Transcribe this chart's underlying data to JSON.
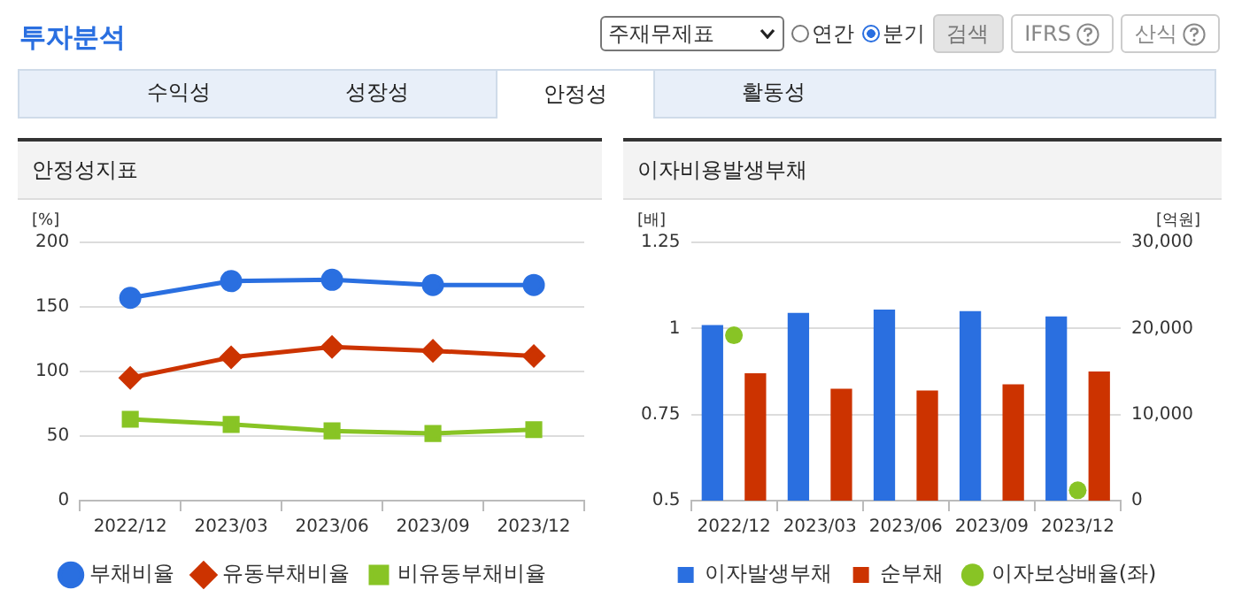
{
  "chart_data": [
    {
      "type": "other",
      "title": "투자분석",
      "annotations": [
        "주재무제표",
        "연간",
        "분기",
        "검색",
        "IFRS",
        "산식",
        "수익성",
        "성장성",
        "안정성",
        "활동성"
      ]
    },
    {
      "type": "line",
      "title": "안정성지표",
      "ylabel": "[%]",
      "categories": [
        "2022/12",
        "2023/03",
        "2023/06",
        "2023/09",
        "2023/12"
      ],
      "series": [
        {
          "name": "부채비율",
          "color": "#2a6fe0",
          "marker": "circle",
          "values": [
            157,
            170,
            171,
            167,
            167
          ]
        },
        {
          "name": "유동부채비율",
          "color": "#cc3300",
          "marker": "diamond",
          "values": [
            95,
            111,
            119,
            116,
            112
          ]
        },
        {
          "name": "비유동부채비율",
          "color": "#88c425",
          "marker": "square",
          "values": [
            63,
            59,
            54,
            52,
            55
          ]
        }
      ],
      "ylim": [
        0,
        200
      ],
      "yticks": [
        0,
        50,
        100,
        150,
        200
      ],
      "grid": "y",
      "legend": "bottom"
    },
    {
      "type": "bar",
      "title": "이자비용발생부채",
      "ylabel": "[배]",
      "y2label": "[억원]",
      "categories": [
        "2022/12",
        "2023/03",
        "2023/06",
        "2023/09",
        "2023/12"
      ],
      "series": [
        {
          "name": "이자발생부채",
          "color": "#2a6fe0",
          "axis": "y2",
          "values": [
            20400,
            21800,
            22200,
            22000,
            21400
          ]
        },
        {
          "name": "순부채",
          "color": "#cc3300",
          "axis": "y2",
          "values": [
            14800,
            13000,
            12800,
            13500,
            15000
          ]
        },
        {
          "name": "이자보상배율(좌)",
          "type": "scatter",
          "color": "#88c425",
          "marker": "circle",
          "values": [
            0.98,
            null,
            null,
            null,
            0.53
          ]
        }
      ],
      "ylim": [
        0.5,
        1.25
      ],
      "yticks": [
        0.5,
        0.75,
        1,
        1.25
      ],
      "y2lim": [
        0,
        30000
      ],
      "y2ticks": [
        0,
        {
          "value": 10000,
          "label": "10,000"
        },
        {
          "value": 20000,
          "label": "20,000"
        },
        {
          "value": 30000,
          "label": "30,000"
        }
      ],
      "grid": "y",
      "legend": "bottom"
    }
  ]
}
